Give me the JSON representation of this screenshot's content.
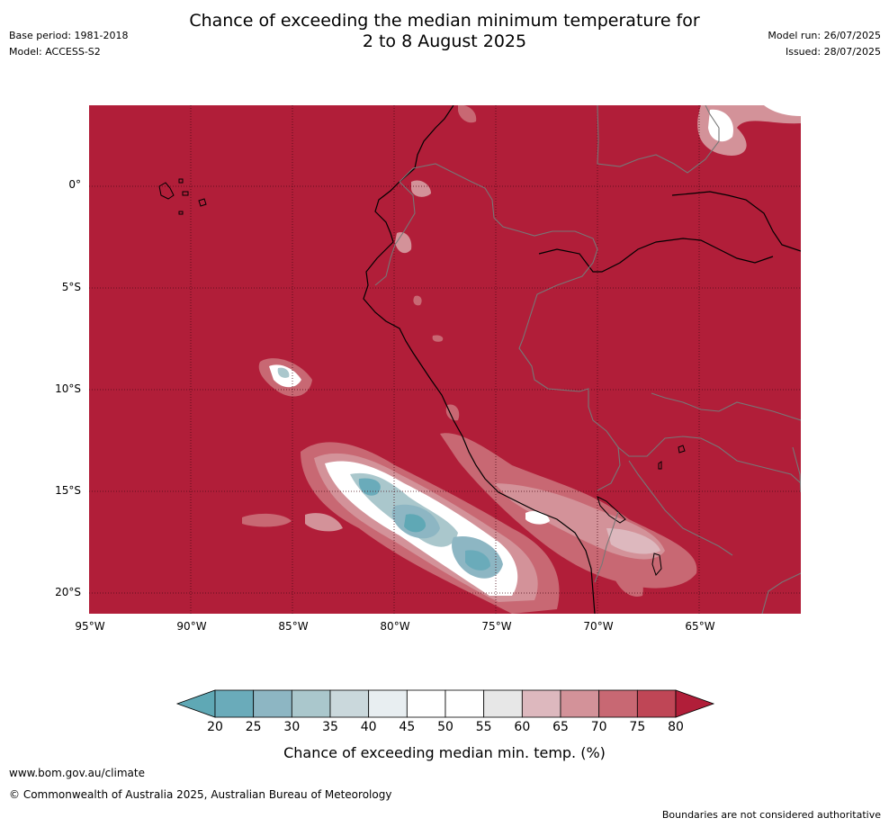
{
  "header": {
    "title_line1": "Chance of exceeding the median minimum temperature for",
    "title_line2": "2 to 8 August 2025",
    "base_period": "Base period: 1981-2018",
    "model": "Model: ACCESS-S2",
    "model_run": "Model run: 26/07/2025",
    "issued": "Issued: 28/07/2025"
  },
  "map": {
    "lat_labels": [
      "0°",
      "5°S",
      "10°S",
      "15°S",
      "20°S"
    ],
    "lon_labels": [
      "95°W",
      "90°W",
      "85°W",
      "80°W",
      "75°W",
      "70°W",
      "65°W"
    ],
    "background_color": "#b11e39"
  },
  "colorbar": {
    "ticks": [
      "20",
      "25",
      "30",
      "35",
      "40",
      "45",
      "50",
      "55",
      "60",
      "65",
      "70",
      "75",
      "80"
    ],
    "colors": [
      "#5fa8b5",
      "#6aabba",
      "#8db6c3",
      "#aac7cc",
      "#cad8dc",
      "#e8eef1",
      "#ffffff",
      "#ffffff",
      "#e7e7e7",
      "#ddb8be",
      "#d39299",
      "#c86873",
      "#bf4656",
      "#b11e39"
    ],
    "label": "Chance of exceeding median min. temp. (%)"
  },
  "footer": {
    "url": "www.bom.gov.au/climate",
    "copyright": "© Commonwealth of Australia 2025, Australian Bureau of Meteorology",
    "disclaimer": "Boundaries are not considered authoritative"
  }
}
